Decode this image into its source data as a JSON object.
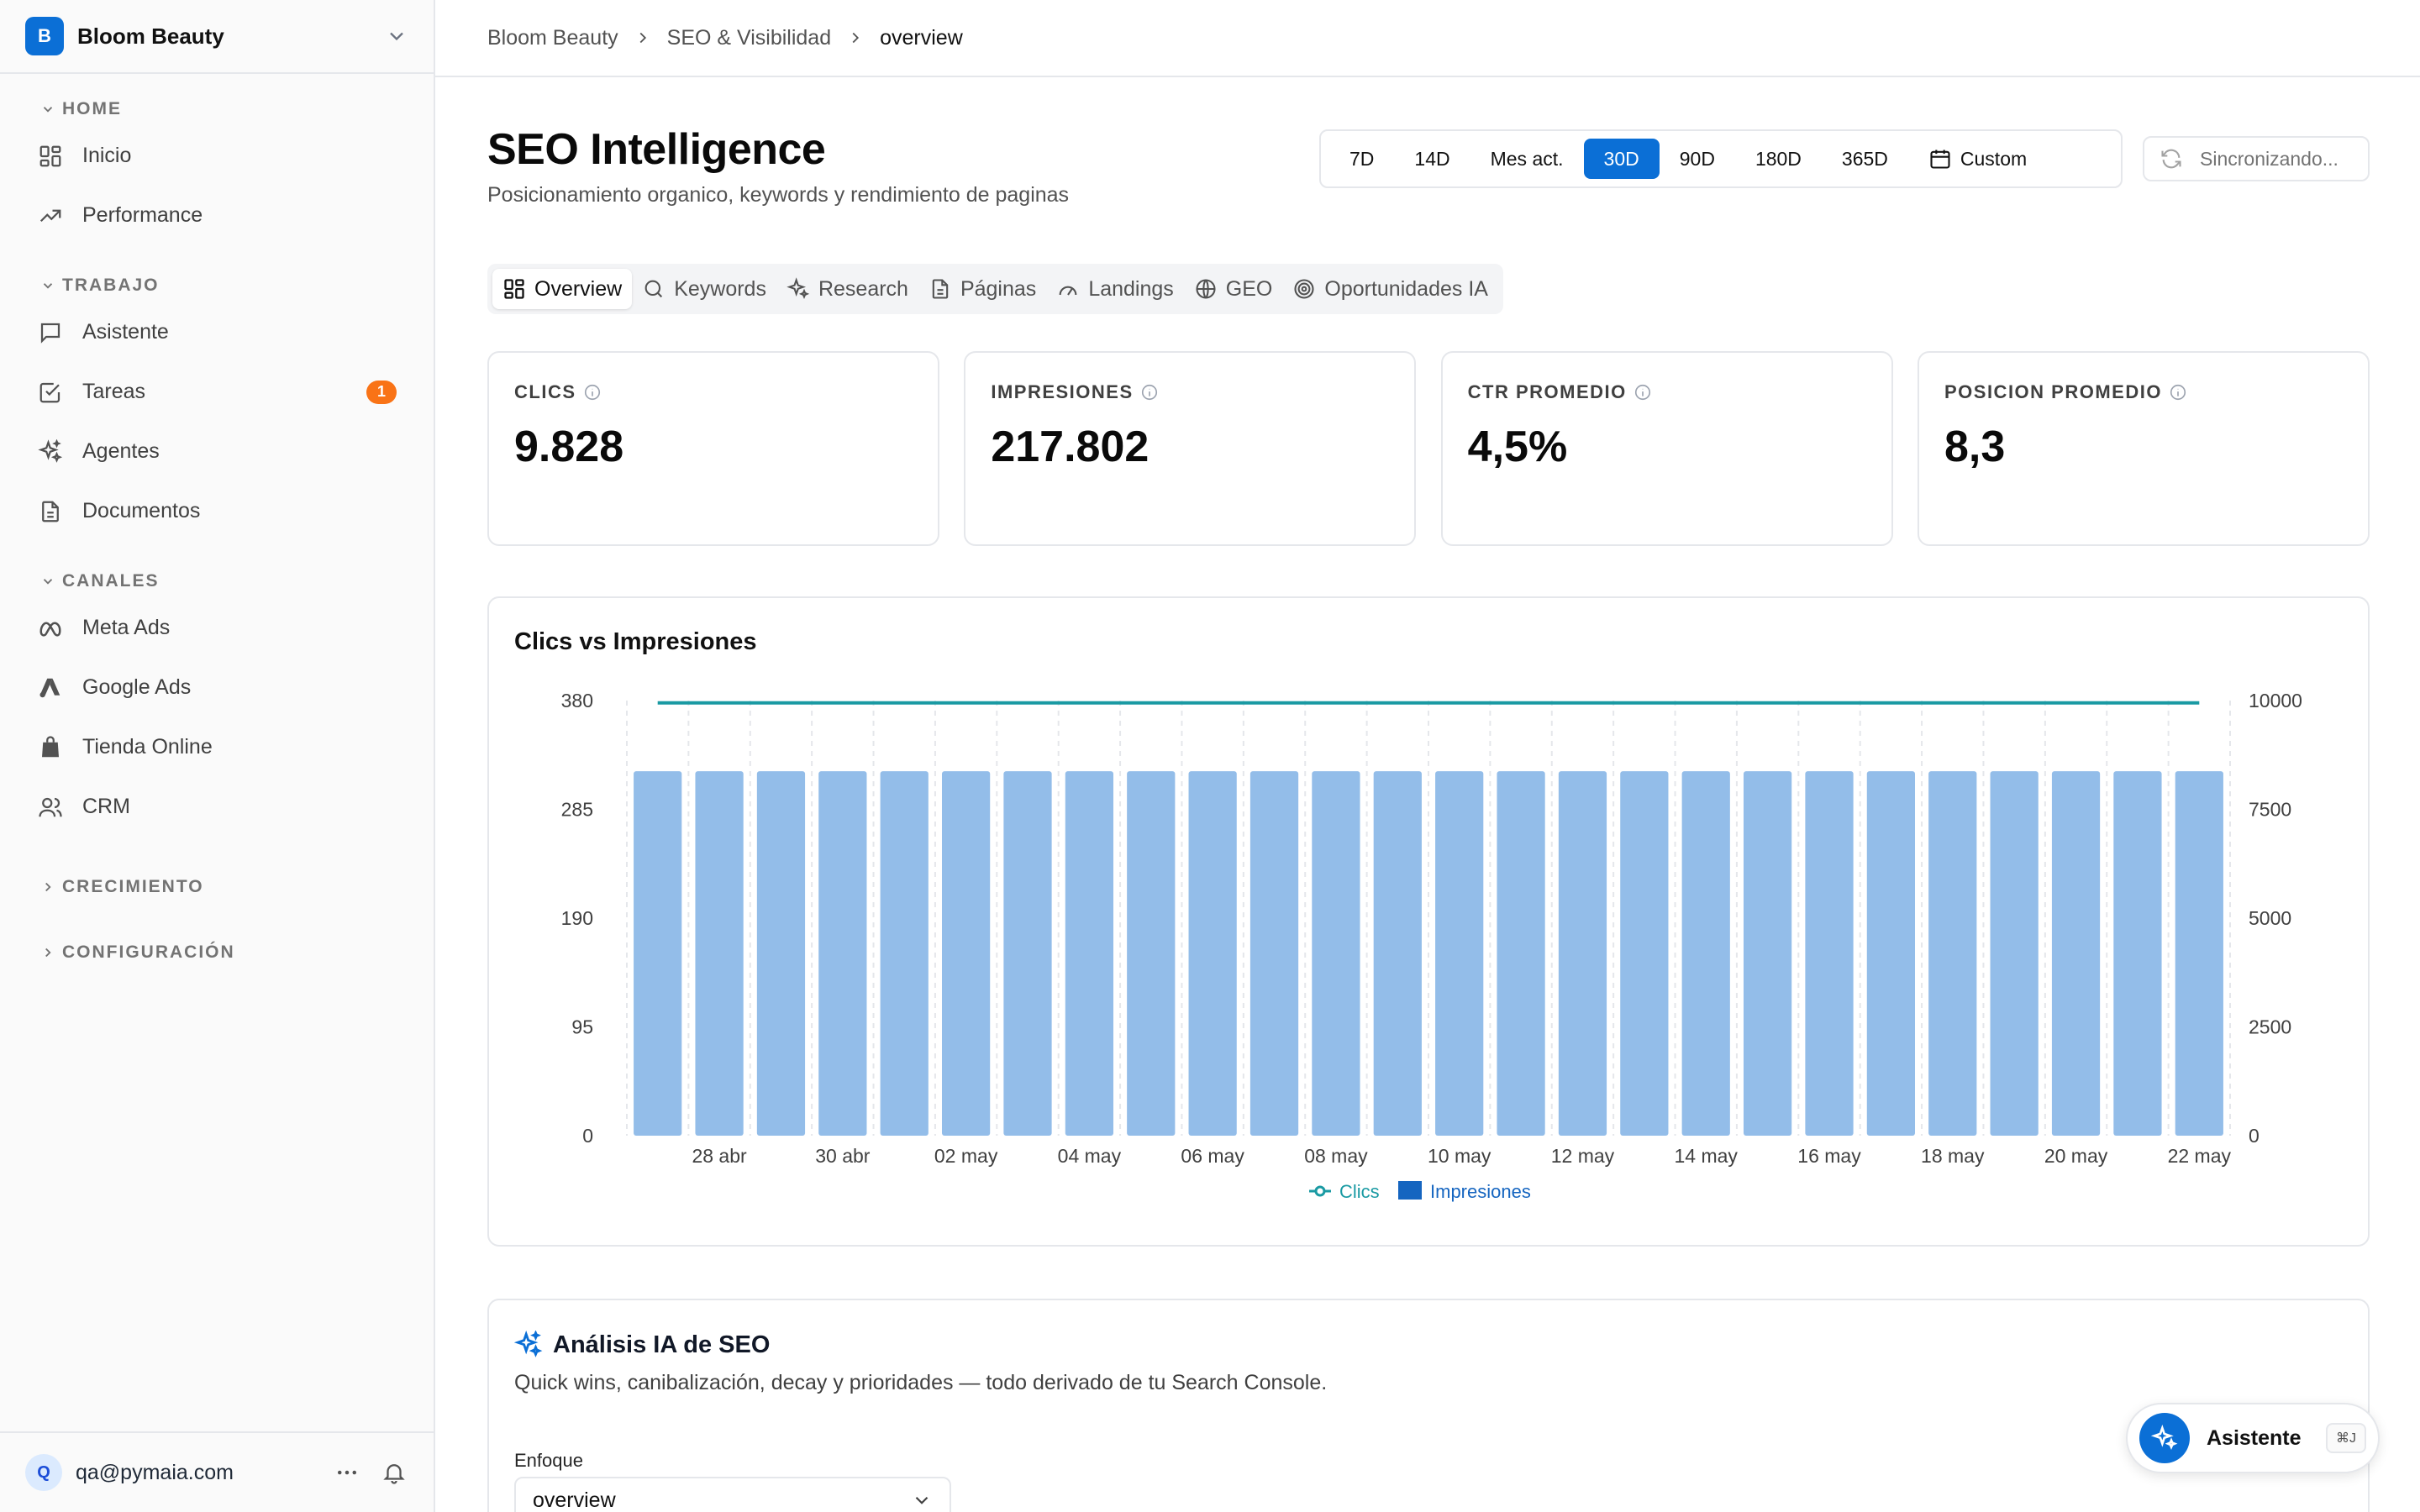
{
  "workspace": {
    "initial": "B",
    "name": "Bloom Beauty"
  },
  "sidebar": {
    "sections": [
      {
        "title": "HOME",
        "expanded": true,
        "items": [
          {
            "label": "Inicio",
            "icon": "grid-icon"
          },
          {
            "label": "Performance",
            "icon": "trending-up-icon"
          }
        ]
      },
      {
        "title": "TRABAJO",
        "expanded": true,
        "items": [
          {
            "label": "Asistente",
            "icon": "chat-icon"
          },
          {
            "label": "Tareas",
            "icon": "checkbox-icon",
            "badge": "1"
          },
          {
            "label": "Agentes",
            "icon": "sparkles-icon"
          },
          {
            "label": "Documentos",
            "icon": "document-icon"
          }
        ]
      },
      {
        "title": "CANALES",
        "expanded": true,
        "items": [
          {
            "label": "Meta Ads",
            "icon": "meta-icon"
          },
          {
            "label": "Google Ads",
            "icon": "google-ads-icon"
          },
          {
            "label": "Tienda Online",
            "icon": "shopping-bag-icon"
          },
          {
            "label": "CRM",
            "icon": "users-icon"
          }
        ]
      },
      {
        "title": "CRECIMIENTO",
        "expanded": false,
        "items": []
      },
      {
        "title": "CONFIGURACIÓN",
        "expanded": false,
        "items": []
      }
    ]
  },
  "user": {
    "initial": "Q",
    "email": "qa@pymaia.com"
  },
  "breadcrumb": [
    "Bloom Beauty",
    "SEO & Visibilidad",
    "overview"
  ],
  "header": {
    "title": "SEO Intelligence",
    "subtitle": "Posicionamiento organico, keywords y rendimiento de paginas"
  },
  "date_ranges": [
    "7D",
    "14D",
    "Mes act.",
    "30D",
    "90D",
    "180D",
    "365D",
    "Custom"
  ],
  "active_range": "30D",
  "sync_label": "Sincronizando...",
  "tabs": [
    {
      "label": "Overview",
      "icon": "grid-icon",
      "active": true
    },
    {
      "label": "Keywords",
      "icon": "search-icon"
    },
    {
      "label": "Research",
      "icon": "sparkles-icon"
    },
    {
      "label": "Páginas",
      "icon": "document-icon"
    },
    {
      "label": "Landings",
      "icon": "gauge-icon"
    },
    {
      "label": "GEO",
      "icon": "globe-icon"
    },
    {
      "label": "Oportunidades IA",
      "icon": "target-icon"
    }
  ],
  "kpis": [
    {
      "label": "CLICS",
      "value": "9.828"
    },
    {
      "label": "IMPRESIONES",
      "value": "217.802"
    },
    {
      "label": "CTR PROMEDIO",
      "value": "4,5%"
    },
    {
      "label": "POSICION PROMEDIO",
      "value": "8,3"
    }
  ],
  "chart_title": "Clics vs Impresiones",
  "chart_data": {
    "type": "bar",
    "title": "Clics vs Impresiones",
    "categories": [
      "27 abr",
      "28 abr",
      "29 abr",
      "30 abr",
      "01 may",
      "02 may",
      "03 may",
      "04 may",
      "05 may",
      "06 may",
      "07 may",
      "08 may",
      "09 may",
      "10 may",
      "11 may",
      "12 may",
      "13 may",
      "14 may",
      "15 may",
      "16 may",
      "17 may",
      "18 may",
      "19 may",
      "20 may",
      "21 may",
      "22 may"
    ],
    "x_tick_labels": [
      "28 abr",
      "30 abr",
      "02 may",
      "04 may",
      "06 may",
      "08 may",
      "10 may",
      "12 may",
      "14 may",
      "16 may",
      "18 may",
      "20 may",
      "22 may"
    ],
    "series": [
      {
        "name": "Clics",
        "type": "line",
        "axis": "left",
        "color": "#1a9aa3",
        "values": [
          378,
          378,
          378,
          378,
          378,
          378,
          378,
          378,
          378,
          378,
          378,
          378,
          378,
          378,
          378,
          378,
          378,
          378,
          378,
          378,
          378,
          378,
          378,
          378,
          378,
          378
        ]
      },
      {
        "name": "Impresiones",
        "type": "bar",
        "axis": "right",
        "color": "#93bde9",
        "values": [
          8377,
          8377,
          8377,
          8377,
          8377,
          8377,
          8377,
          8377,
          8377,
          8377,
          8377,
          8377,
          8377,
          8377,
          8377,
          8377,
          8377,
          8377,
          8377,
          8377,
          8377,
          8377,
          8377,
          8377,
          8377,
          8377
        ]
      }
    ],
    "y_left": {
      "ticks": [
        "0",
        "95",
        "190",
        "285",
        "380"
      ],
      "range": [
        0,
        380
      ]
    },
    "y_right": {
      "ticks": [
        "0",
        "2500",
        "5000",
        "7500",
        "10000"
      ],
      "range": [
        0,
        10000
      ]
    },
    "legend_position": "bottom-center",
    "grid": "vertical-dashed"
  },
  "ai_analysis": {
    "title": "Análisis IA de SEO",
    "description": "Quick wins, canibalización, decay y prioridades — todo derivado de tu Search Console.",
    "focus_label": "Enfoque",
    "focus_value": "overview"
  },
  "assistant_fab": {
    "label": "Asistente",
    "shortcut": "⌘J"
  },
  "colors": {
    "accent": "#0b6fd6",
    "badge": "#f97316",
    "clics_line": "#1a9aa3",
    "impresiones_bar": "#93bde9"
  }
}
